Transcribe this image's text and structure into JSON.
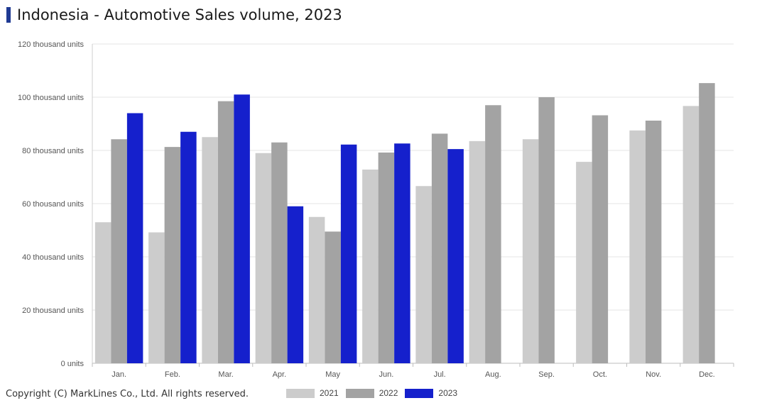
{
  "title": "Indonesia - Automotive Sales volume, 2023",
  "copyright": "Copyright (C) MarkLines Co., Ltd. All rights reserved.",
  "chart_data": {
    "type": "bar",
    "title": "Indonesia - Automotive Sales volume, 2023",
    "xlabel": "",
    "ylabel": "",
    "categories": [
      "Jan.",
      "Feb.",
      "Mar.",
      "Apr.",
      "May",
      "Jun.",
      "Jul.",
      "Aug.",
      "Sep.",
      "Oct.",
      "Nov.",
      "Dec."
    ],
    "y_ticks": [
      {
        "value": 0,
        "label": "0 units"
      },
      {
        "value": 20,
        "label": "20 thousand units"
      },
      {
        "value": 40,
        "label": "40 thousand units"
      },
      {
        "value": 60,
        "label": "60 thousand units"
      },
      {
        "value": 80,
        "label": "80 thousand units"
      },
      {
        "value": 100,
        "label": "100 thousand units"
      },
      {
        "value": 120,
        "label": "120 thousand units"
      }
    ],
    "ylim": [
      0,
      120
    ],
    "grid": true,
    "legend_position": "bottom",
    "series": [
      {
        "name": "2021",
        "color": "#cccccc",
        "values": [
          53.0,
          49.2,
          85.0,
          79.0,
          55.0,
          72.8,
          66.6,
          83.5,
          84.2,
          75.7,
          87.5,
          96.7
        ]
      },
      {
        "name": "2022",
        "color": "#a3a3a3",
        "values": [
          84.2,
          81.3,
          98.5,
          83.0,
          49.5,
          79.2,
          86.3,
          97.0,
          100.0,
          93.2,
          91.2,
          105.3
        ]
      },
      {
        "name": "2023",
        "color": "#1520cc",
        "values": [
          94.0,
          87.0,
          101.0,
          59.0,
          82.2,
          82.6,
          80.5,
          null,
          null,
          null,
          null,
          null
        ]
      }
    ]
  }
}
